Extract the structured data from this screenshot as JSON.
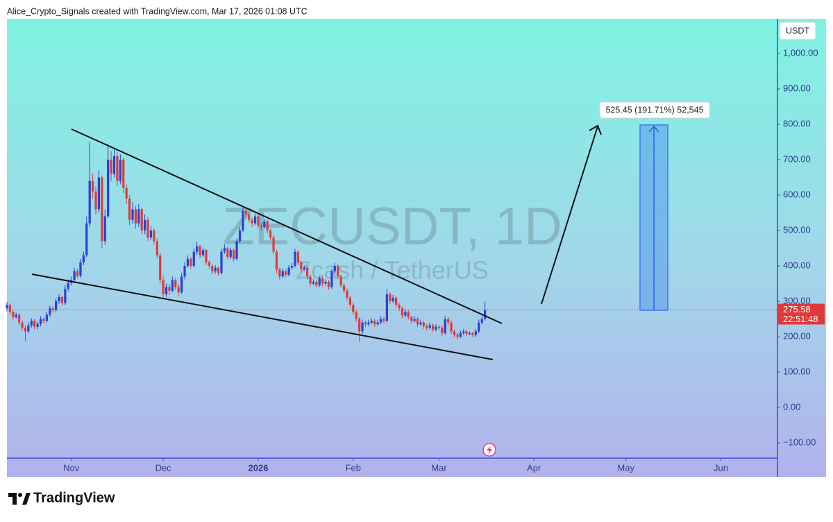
{
  "header": "Alice_Crypto_Signals created with TradingView.com, Mar 17, 2026 01:08 UTC",
  "watermark": {
    "symbol": "ZECUSDT, 1D",
    "description": "Zcash / TetherUS"
  },
  "currency": "USDT",
  "measure_label": "525.45 (191.71%) 52,545",
  "countdown": "22:51:48",
  "brand": "TradingView",
  "chart_data": {
    "type": "candlestick",
    "up_color": "#2b3fd6",
    "down_color": "#e0393a",
    "last_price_color": "#e0393a",
    "xlim": [
      0,
      251
    ],
    "xticks": [
      {
        "value": 21,
        "label": "Nov"
      },
      {
        "value": 51,
        "label": "Dec"
      },
      {
        "value": 82,
        "label": "2026"
      },
      {
        "value": 113,
        "label": "Feb"
      },
      {
        "value": 141,
        "label": "Mar"
      },
      {
        "value": 172,
        "label": "Apr"
      },
      {
        "value": 202,
        "label": "May"
      },
      {
        "value": 233,
        "label": "Jun"
      }
    ],
    "ylim": [
      -143,
      1098
    ],
    "yticks": [
      {
        "value": -100,
        "label": "−100.00"
      },
      {
        "value": 0,
        "label": "0.00"
      },
      {
        "value": 100,
        "label": "100.00"
      },
      {
        "value": 200,
        "label": "200.00"
      },
      {
        "value": 300,
        "label": "300.00"
      },
      {
        "value": 400,
        "label": "400.00"
      },
      {
        "value": 500,
        "label": "500.00"
      },
      {
        "value": 600,
        "label": "600.00"
      },
      {
        "value": 700,
        "label": "700.00"
      },
      {
        "value": 800,
        "label": "800.00"
      },
      {
        "value": 900,
        "label": "900.00"
      },
      {
        "value": 1000,
        "label": "1,000.00"
      }
    ],
    "ohlc": [
      [
        280,
        298,
        272,
        290
      ],
      [
        290,
        295,
        262,
        270
      ],
      [
        270,
        278,
        248,
        255
      ],
      [
        255,
        268,
        250,
        262
      ],
      [
        262,
        266,
        232,
        240
      ],
      [
        240,
        246,
        218,
        225
      ],
      [
        225,
        232,
        188,
        215
      ],
      [
        215,
        240,
        210,
        232
      ],
      [
        232,
        252,
        226,
        245
      ],
      [
        245,
        250,
        220,
        228
      ],
      [
        228,
        242,
        222,
        236
      ],
      [
        236,
        258,
        230,
        250
      ],
      [
        250,
        256,
        238,
        245
      ],
      [
        245,
        270,
        240,
        262
      ],
      [
        262,
        288,
        256,
        280
      ],
      [
        280,
        286,
        268,
        275
      ],
      [
        275,
        308,
        270,
        300
      ],
      [
        300,
        320,
        292,
        312
      ],
      [
        312,
        316,
        288,
        295
      ],
      [
        295,
        345,
        290,
        335
      ],
      [
        335,
        362,
        328,
        352
      ],
      [
        352,
        370,
        345,
        360
      ],
      [
        360,
        395,
        355,
        385
      ],
      [
        385,
        392,
        365,
        372
      ],
      [
        372,
        420,
        366,
        410
      ],
      [
        410,
        440,
        402,
        430
      ],
      [
        430,
        540,
        425,
        520
      ],
      [
        520,
        750,
        510,
        640
      ],
      [
        640,
        660,
        590,
        610
      ],
      [
        610,
        625,
        545,
        560
      ],
      [
        560,
        670,
        550,
        650
      ],
      [
        650,
        655,
        450,
        470
      ],
      [
        470,
        560,
        460,
        540
      ],
      [
        540,
        745,
        535,
        700
      ],
      [
        700,
        725,
        640,
        660
      ],
      [
        660,
        735,
        650,
        710
      ],
      [
        710,
        720,
        625,
        640
      ],
      [
        640,
        715,
        630,
        700
      ],
      [
        700,
        705,
        605,
        620
      ],
      [
        620,
        630,
        575,
        590
      ],
      [
        590,
        600,
        515,
        530
      ],
      [
        530,
        580,
        520,
        560
      ],
      [
        560,
        570,
        505,
        520
      ],
      [
        520,
        575,
        510,
        560
      ],
      [
        560,
        565,
        490,
        500
      ],
      [
        500,
        545,
        490,
        530
      ],
      [
        530,
        538,
        470,
        480
      ],
      [
        480,
        512,
        472,
        500
      ],
      [
        500,
        506,
        460,
        470
      ],
      [
        470,
        478,
        420,
        430
      ],
      [
        430,
        438,
        350,
        360
      ],
      [
        360,
        372,
        310,
        320
      ],
      [
        320,
        350,
        312,
        340
      ],
      [
        340,
        348,
        318,
        330
      ],
      [
        330,
        370,
        325,
        360
      ],
      [
        360,
        366,
        332,
        340
      ],
      [
        340,
        348,
        315,
        325
      ],
      [
        325,
        380,
        320,
        370
      ],
      [
        370,
        410,
        362,
        400
      ],
      [
        400,
        430,
        395,
        420
      ],
      [
        420,
        426,
        392,
        400
      ],
      [
        400,
        450,
        395,
        440
      ],
      [
        440,
        468,
        432,
        455
      ],
      [
        455,
        460,
        422,
        430
      ],
      [
        430,
        452,
        425,
        445
      ],
      [
        445,
        448,
        402,
        410
      ],
      [
        410,
        415,
        392,
        400
      ],
      [
        400,
        405,
        376,
        385
      ],
      [
        385,
        402,
        378,
        395
      ],
      [
        395,
        398,
        372,
        380
      ],
      [
        380,
        448,
        375,
        440
      ],
      [
        440,
        460,
        434,
        450
      ],
      [
        450,
        455,
        418,
        425
      ],
      [
        425,
        452,
        420,
        445
      ],
      [
        445,
        450,
        412,
        420
      ],
      [
        420,
        478,
        415,
        470
      ],
      [
        470,
        510,
        465,
        500
      ],
      [
        500,
        565,
        495,
        555
      ],
      [
        555,
        560,
        535,
        545
      ],
      [
        545,
        552,
        522,
        530
      ],
      [
        530,
        536,
        510,
        520
      ],
      [
        520,
        548,
        515,
        540
      ],
      [
        540,
        545,
        508,
        515
      ],
      [
        515,
        522,
        500,
        510
      ],
      [
        510,
        532,
        505,
        525
      ],
      [
        525,
        530,
        492,
        500
      ],
      [
        500,
        505,
        472,
        480
      ],
      [
        480,
        486,
        432,
        440
      ],
      [
        440,
        446,
        380,
        390
      ],
      [
        390,
        395,
        362,
        370
      ],
      [
        370,
        392,
        365,
        385
      ],
      [
        385,
        390,
        368,
        375
      ],
      [
        375,
        402,
        370,
        395
      ],
      [
        395,
        408,
        388,
        400
      ],
      [
        400,
        448,
        395,
        440
      ],
      [
        440,
        445,
        402,
        410
      ],
      [
        410,
        415,
        382,
        390
      ],
      [
        390,
        402,
        385,
        395
      ],
      [
        395,
        400,
        362,
        370
      ],
      [
        370,
        375,
        342,
        350
      ],
      [
        350,
        362,
        345,
        355
      ],
      [
        355,
        360,
        338,
        345
      ],
      [
        345,
        372,
        340,
        365
      ],
      [
        365,
        370,
        342,
        350
      ],
      [
        350,
        362,
        345,
        355
      ],
      [
        355,
        360,
        332,
        340
      ],
      [
        340,
        392,
        335,
        385
      ],
      [
        385,
        408,
        378,
        400
      ],
      [
        400,
        405,
        362,
        370
      ],
      [
        370,
        375,
        338,
        345
      ],
      [
        345,
        350,
        322,
        330
      ],
      [
        330,
        336,
        302,
        310
      ],
      [
        310,
        316,
        282,
        290
      ],
      [
        290,
        296,
        262,
        270
      ],
      [
        270,
        276,
        242,
        250
      ],
      [
        250,
        256,
        185,
        215
      ],
      [
        215,
        248,
        208,
        240
      ],
      [
        240,
        245,
        228,
        235
      ],
      [
        235,
        248,
        230,
        240
      ],
      [
        240,
        252,
        235,
        245
      ],
      [
        245,
        250,
        228,
        235
      ],
      [
        235,
        248,
        230,
        240
      ],
      [
        240,
        258,
        235,
        250
      ],
      [
        250,
        256,
        238,
        245
      ],
      [
        245,
        335,
        240,
        320
      ],
      [
        320,
        326,
        292,
        300
      ],
      [
        300,
        318,
        295,
        310
      ],
      [
        310,
        315,
        282,
        290
      ],
      [
        290,
        296,
        272,
        280
      ],
      [
        280,
        285,
        252,
        260
      ],
      [
        260,
        278,
        255,
        270
      ],
      [
        270,
        275,
        248,
        255
      ],
      [
        255,
        260,
        238,
        245
      ],
      [
        245,
        258,
        240,
        250
      ],
      [
        250,
        255,
        228,
        235
      ],
      [
        235,
        248,
        230,
        240
      ],
      [
        240,
        245,
        222,
        230
      ],
      [
        230,
        236,
        218,
        225
      ],
      [
        225,
        240,
        220,
        232
      ],
      [
        232,
        238,
        212,
        220
      ],
      [
        220,
        235,
        215,
        228
      ],
      [
        228,
        233,
        218,
        225
      ],
      [
        225,
        230,
        202,
        210
      ],
      [
        210,
        258,
        205,
        250
      ],
      [
        250,
        255,
        232,
        240
      ],
      [
        240,
        246,
        208,
        215
      ],
      [
        215,
        220,
        198,
        205
      ],
      [
        205,
        212,
        192,
        200
      ],
      [
        200,
        218,
        196,
        210
      ],
      [
        210,
        222,
        205,
        215
      ],
      [
        215,
        220,
        202,
        208
      ],
      [
        208,
        215,
        204,
        210
      ],
      [
        210,
        214,
        198,
        205
      ],
      [
        205,
        222,
        200,
        215
      ],
      [
        215,
        248,
        210,
        240
      ],
      [
        240,
        258,
        235,
        250
      ],
      [
        250,
        300,
        245,
        275.58
      ]
    ]
  }
}
